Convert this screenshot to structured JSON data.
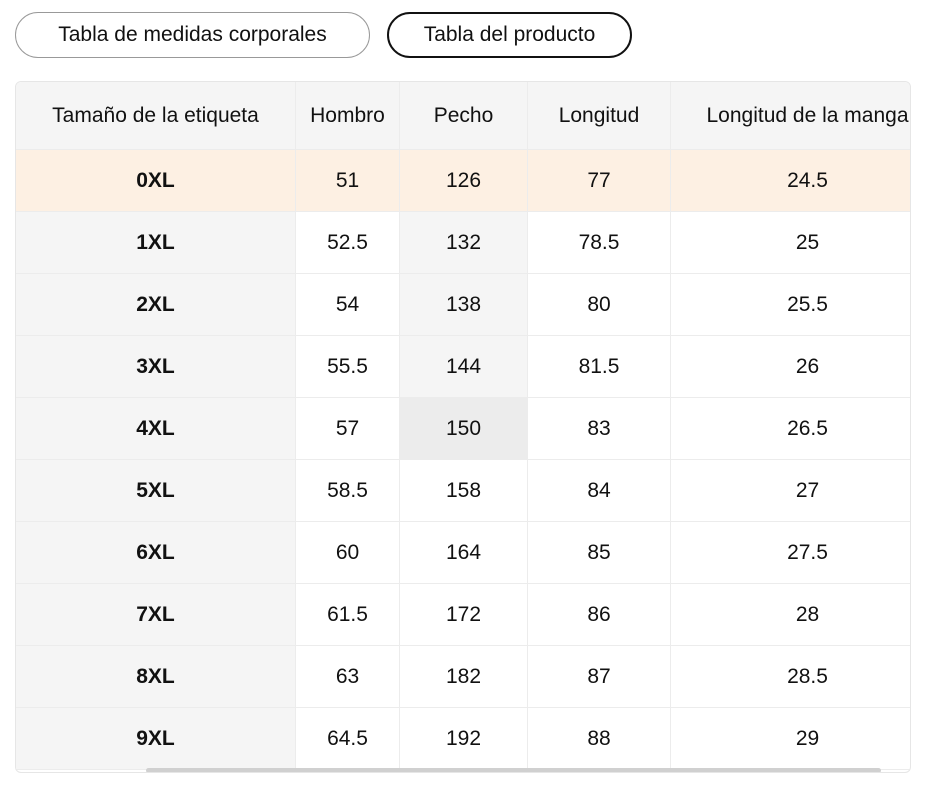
{
  "tabs": [
    "Tabla de medidas corporales",
    "Tabla del producto"
  ],
  "table": {
    "headers": [
      "Tamaño de la etiqueta",
      "Hombro",
      "Pecho",
      "Longitud",
      "Longitud de la manga"
    ],
    "rows": [
      [
        "0XL",
        51,
        126,
        77,
        24.5
      ],
      [
        "1XL",
        52.5,
        132,
        78.5,
        25
      ],
      [
        "2XL",
        54,
        138,
        80,
        25.5
      ],
      [
        "3XL",
        55.5,
        144,
        81.5,
        26
      ],
      [
        "4XL",
        57,
        150,
        83,
        26.5
      ],
      [
        "5XL",
        58.5,
        158,
        84,
        27
      ],
      [
        "6XL",
        60,
        164,
        85,
        27.5
      ],
      [
        "7XL",
        61.5,
        172,
        86,
        28
      ],
      [
        "8XL",
        63,
        182,
        87,
        28.5
      ],
      [
        "9XL",
        64.5,
        192,
        88,
        29
      ]
    ]
  }
}
